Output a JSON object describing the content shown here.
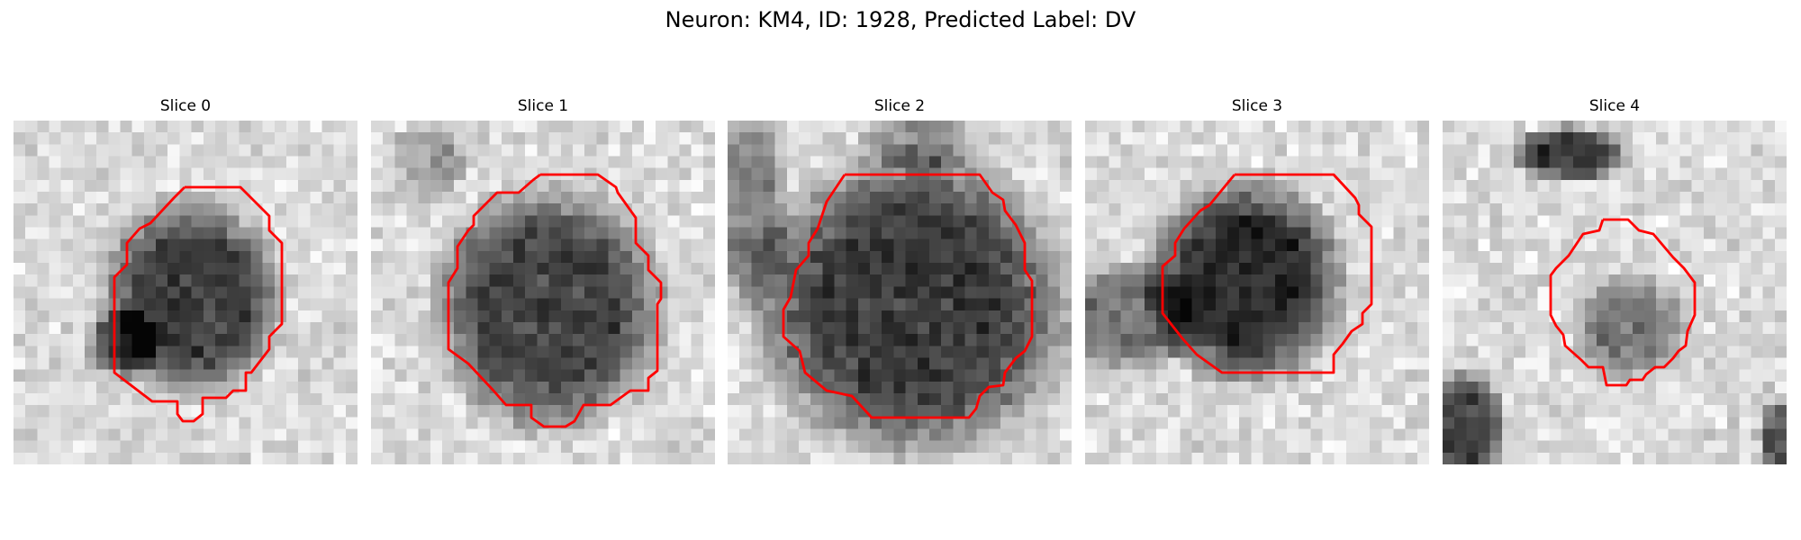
{
  "figure": {
    "title": "Neuron: KM4, ID: 1928, Predicted Label: DV",
    "contour_color": "#ff0000"
  },
  "slices": [
    {
      "title": "Slice 0"
    },
    {
      "title": "Slice 1"
    },
    {
      "title": "Slice 2"
    },
    {
      "title": "Slice 3"
    },
    {
      "title": "Slice 4"
    }
  ]
}
